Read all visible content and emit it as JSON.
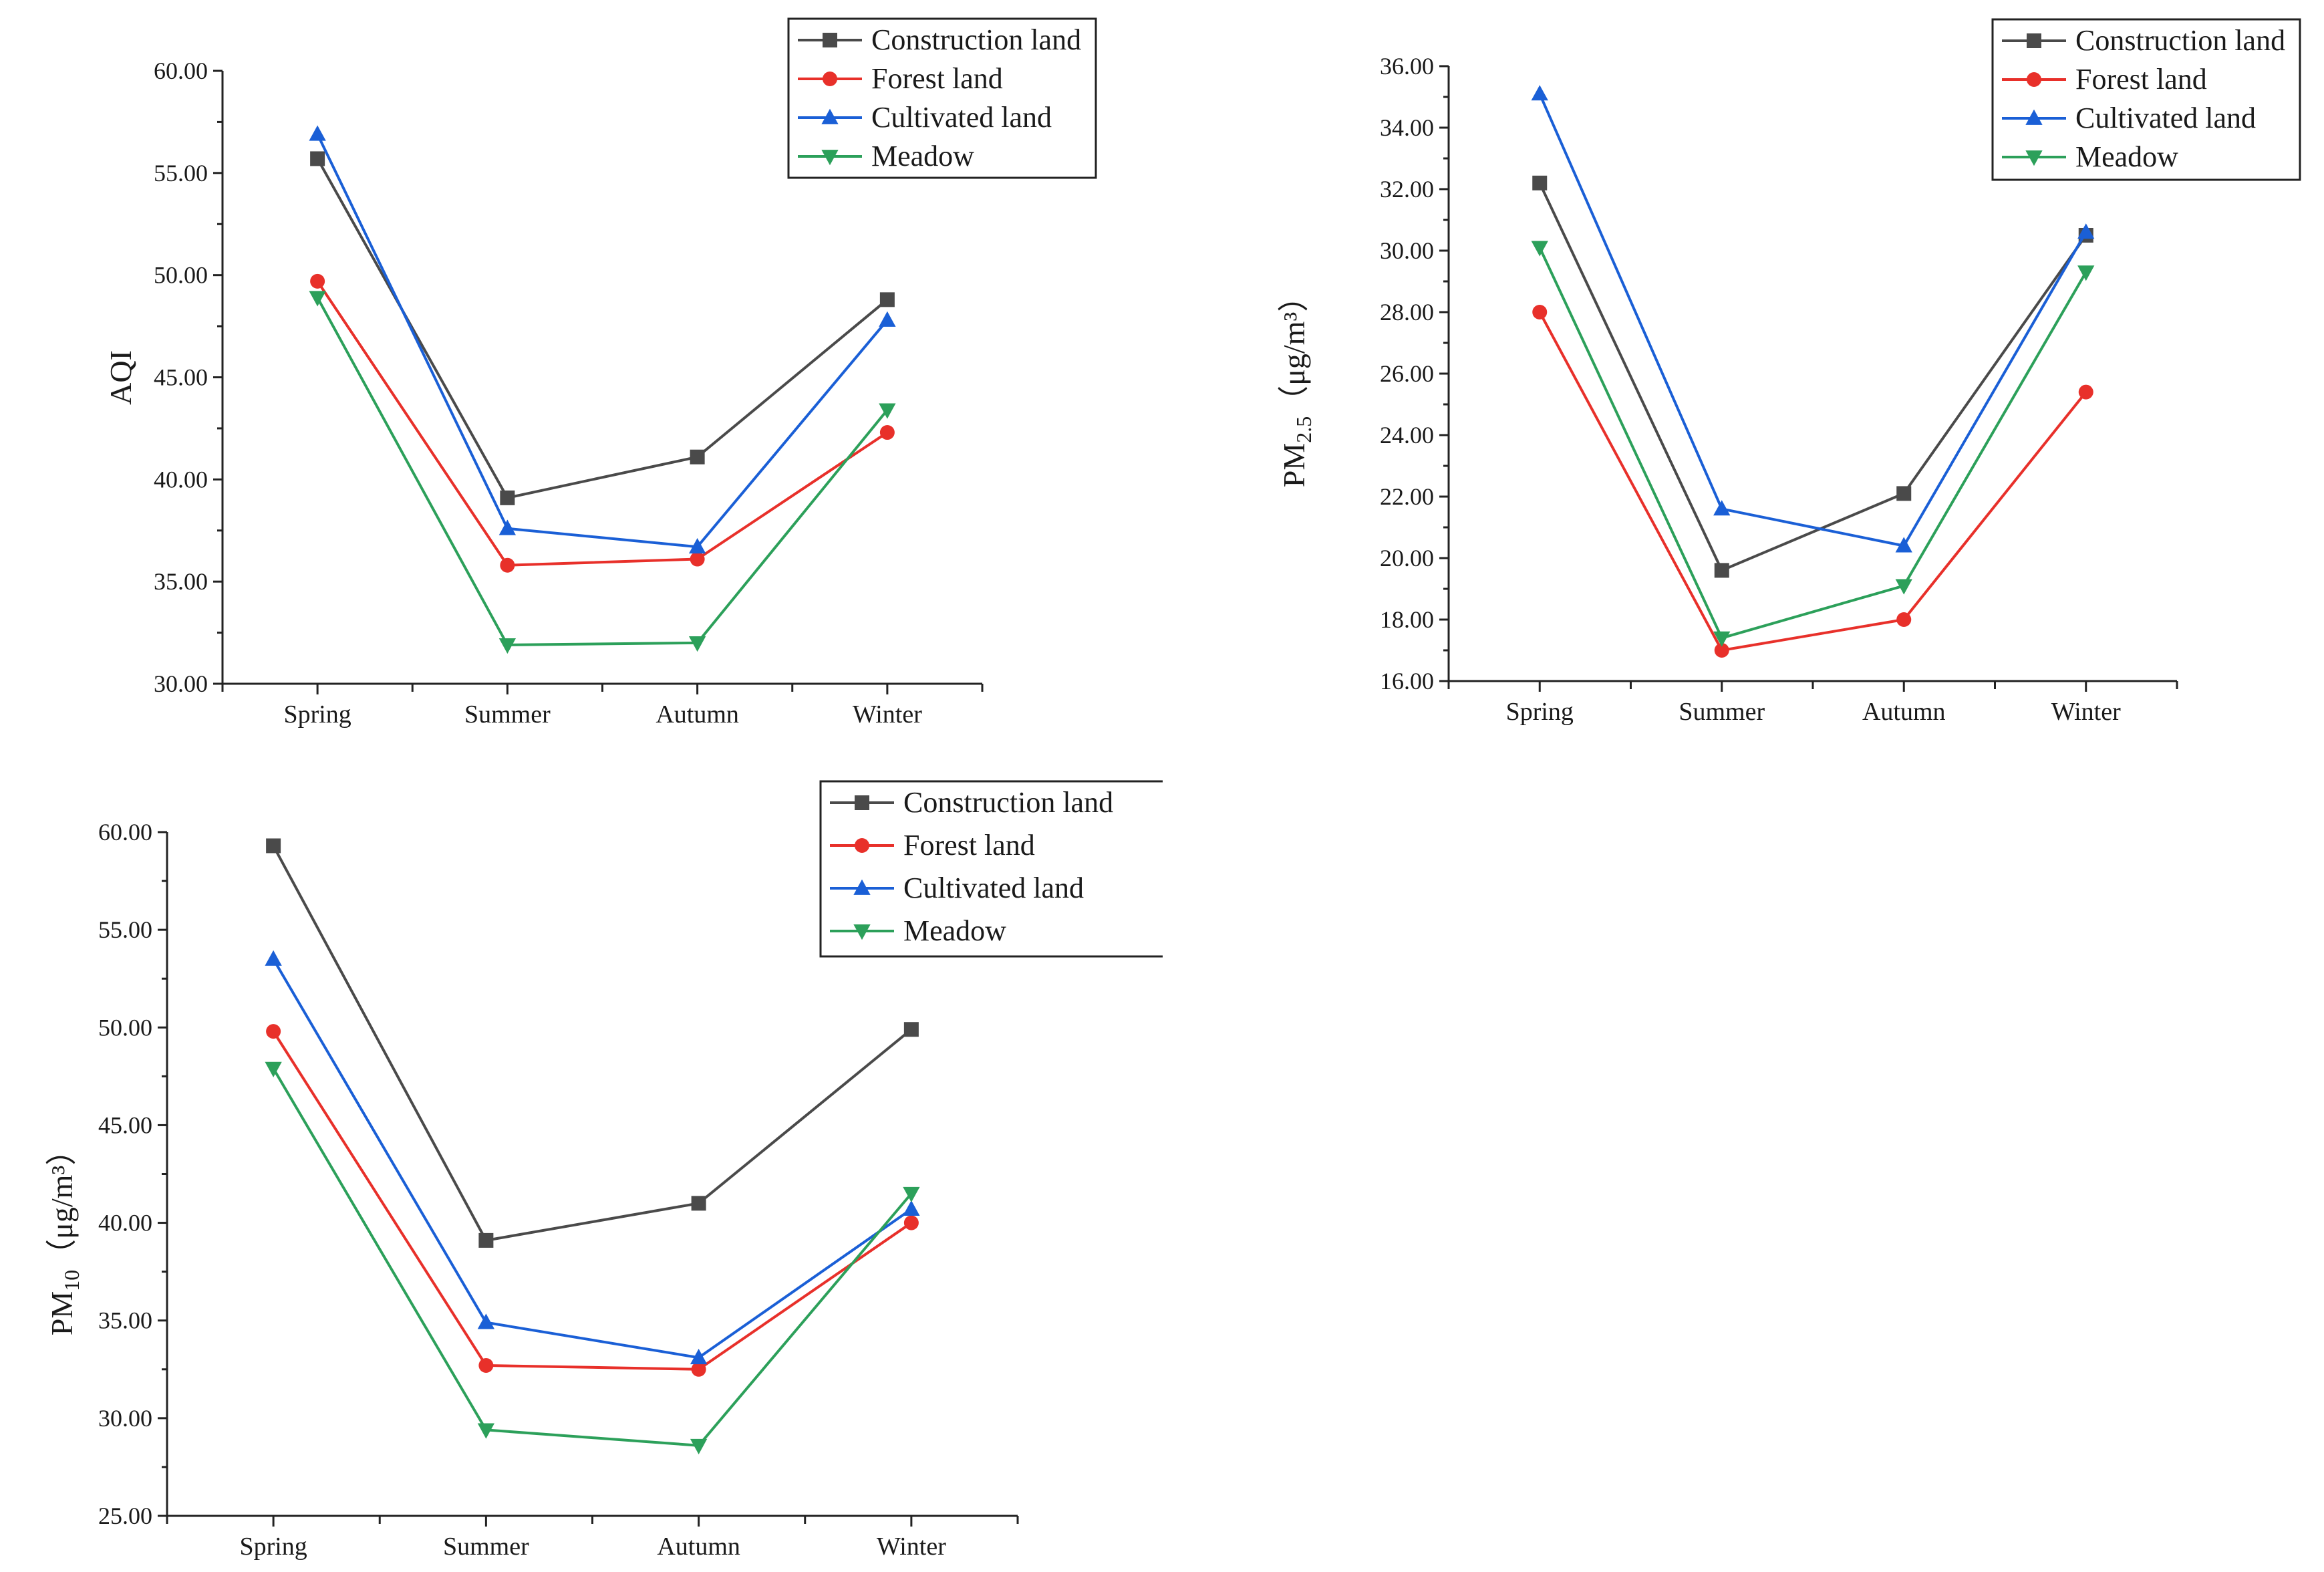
{
  "chart_data": [
    {
      "type": "line",
      "id": "aqi",
      "ylabel": "AQI",
      "categories": [
        "Spring",
        "Summer",
        "Autumn",
        "Winter"
      ],
      "ylim": [
        30,
        60
      ],
      "yticks": [
        "30.00",
        "35.00",
        "40.00",
        "45.00",
        "50.00",
        "55.00",
        "60.00"
      ],
      "ytick_values": [
        30,
        35,
        40,
        45,
        50,
        55,
        60
      ],
      "legend_position": "top-right",
      "series": [
        {
          "name": "Construction land",
          "color": "#4a4a4a",
          "marker": "square",
          "values": [
            55.7,
            39.1,
            41.1,
            48.8
          ]
        },
        {
          "name": "Forest land",
          "color": "#e8302a",
          "marker": "circle",
          "values": [
            49.7,
            35.8,
            36.1,
            42.3
          ]
        },
        {
          "name": "Cultivated land",
          "color": "#1a5fd6",
          "marker": "triangle-up",
          "values": [
            56.9,
            37.6,
            36.7,
            47.8
          ]
        },
        {
          "name": "Meadow",
          "color": "#2ca05a",
          "marker": "triangle-down",
          "values": [
            48.9,
            31.9,
            32.0,
            43.4
          ]
        }
      ]
    },
    {
      "type": "line",
      "id": "pm25",
      "ylabel_main": "PM",
      "ylabel_sub": "2.5",
      "ylabel_unit": "（μg/m³）",
      "categories": [
        "Spring",
        "Summer",
        "Autumn",
        "Winter"
      ],
      "ylim": [
        16,
        36
      ],
      "yticks": [
        "16.00",
        "18.00",
        "20.00",
        "22.00",
        "24.00",
        "26.00",
        "28.00",
        "30.00",
        "32.00",
        "34.00",
        "36.00"
      ],
      "ytick_values": [
        16,
        18,
        20,
        22,
        24,
        26,
        28,
        30,
        32,
        34,
        36
      ],
      "legend_position": "top-right",
      "series": [
        {
          "name": "Construction land",
          "color": "#4a4a4a",
          "marker": "square",
          "values": [
            32.2,
            19.6,
            22.1,
            30.5
          ]
        },
        {
          "name": "Forest land",
          "color": "#e8302a",
          "marker": "circle",
          "values": [
            28.0,
            17.0,
            18.0,
            25.4
          ]
        },
        {
          "name": "Cultivated land",
          "color": "#1a5fd6",
          "marker": "triangle-up",
          "values": [
            35.1,
            21.6,
            20.4,
            30.6
          ]
        },
        {
          "name": "Meadow",
          "color": "#2ca05a",
          "marker": "triangle-down",
          "values": [
            30.1,
            17.4,
            19.1,
            29.3
          ]
        }
      ]
    },
    {
      "type": "line",
      "id": "pm10",
      "ylabel_main": "PM",
      "ylabel_sub": "10",
      "ylabel_unit": "（μg/m³）",
      "categories": [
        "Spring",
        "Summer",
        "Autumn",
        "Winter"
      ],
      "ylim": [
        25,
        60
      ],
      "yticks": [
        "25.00",
        "30.00",
        "35.00",
        "40.00",
        "45.00",
        "50.00",
        "55.00",
        "60.00"
      ],
      "ytick_values": [
        25,
        30,
        35,
        40,
        45,
        50,
        55,
        60
      ],
      "legend_position": "top-right",
      "series": [
        {
          "name": "Construction land",
          "color": "#4a4a4a",
          "marker": "square",
          "values": [
            59.3,
            39.1,
            41.0,
            49.9
          ]
        },
        {
          "name": "Forest land",
          "color": "#e8302a",
          "marker": "circle",
          "values": [
            49.8,
            32.7,
            32.5,
            40.0
          ]
        },
        {
          "name": "Cultivated land",
          "color": "#1a5fd6",
          "marker": "triangle-up",
          "values": [
            53.5,
            34.9,
            33.1,
            40.7
          ]
        },
        {
          "name": "Meadow",
          "color": "#2ca05a",
          "marker": "triangle-down",
          "values": [
            47.9,
            29.4,
            28.6,
            41.5
          ]
        }
      ]
    }
  ]
}
